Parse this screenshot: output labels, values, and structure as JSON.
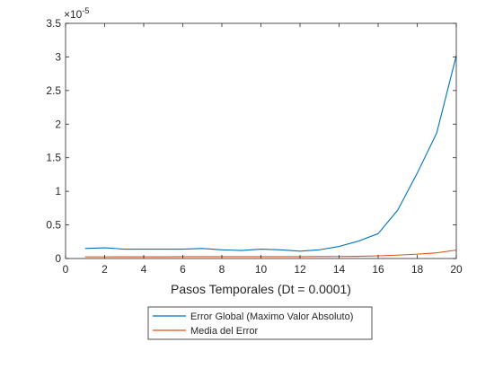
{
  "chart_data": {
    "type": "line",
    "title": "",
    "xlabel": "Pasos Temporales (Dt = 0.0001)",
    "ylabel": "",
    "xlim": [
      0,
      20
    ],
    "ylim": [
      0,
      3.5
    ],
    "x_ticks": [
      "0",
      "2",
      "4",
      "6",
      "8",
      "10",
      "12",
      "14",
      "16",
      "18",
      "20"
    ],
    "y_ticks": [
      "0",
      "0.5",
      "1",
      "1.5",
      "2",
      "2.5",
      "3",
      "3.5"
    ],
    "y_exponent": "×10",
    "y_exponent_power": "-5",
    "grid": false,
    "legend_position": "bottom-center",
    "x": [
      1,
      2,
      3,
      4,
      5,
      6,
      7,
      8,
      9,
      10,
      11,
      12,
      13,
      14,
      15,
      16,
      17,
      18,
      19,
      20
    ],
    "series": [
      {
        "name": "Error Global (Maximo Valor Absoluto)",
        "color": "#0072BD",
        "values": [
          0.15,
          0.16,
          0.14,
          0.14,
          0.14,
          0.14,
          0.15,
          0.13,
          0.12,
          0.14,
          0.13,
          0.11,
          0.13,
          0.18,
          0.26,
          0.37,
          0.72,
          1.27,
          1.87,
          3.02
        ]
      },
      {
        "name": "Media del Error",
        "color": "#D95319",
        "values": [
          0.025,
          0.025,
          0.026,
          0.026,
          0.026,
          0.027,
          0.027,
          0.027,
          0.027,
          0.028,
          0.028,
          0.028,
          0.029,
          0.03,
          0.033,
          0.04,
          0.05,
          0.065,
          0.085,
          0.125
        ]
      }
    ]
  }
}
